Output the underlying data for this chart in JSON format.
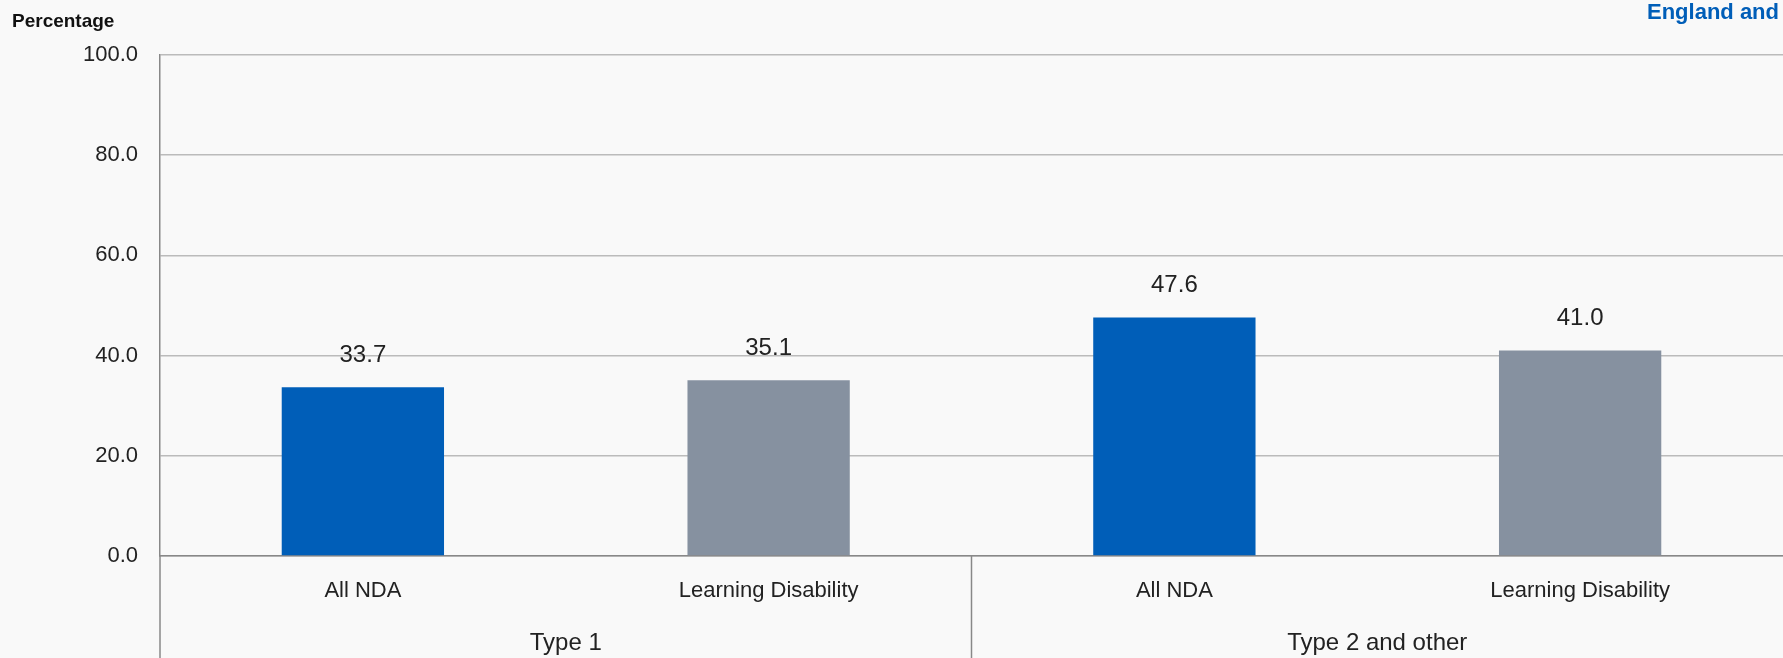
{
  "chart_data": {
    "type": "bar",
    "ylabel": "Percentage",
    "categories": [
      "All NDA",
      "Learning Disability",
      "All NDA",
      "Learning Disability"
    ],
    "values": [
      33.7,
      35.1,
      47.6,
      41.0
    ],
    "value_labels": [
      "33.7",
      "35.1",
      "47.6",
      "41.0"
    ],
    "colors": [
      "#005eb8",
      "#8691a0",
      "#005eb8",
      "#8691a0"
    ],
    "ylim": [
      0,
      100
    ],
    "yticks": [
      {
        "value": 0,
        "label": "0.0"
      },
      {
        "value": 20,
        "label": "20.0"
      },
      {
        "value": 40,
        "label": "40.0"
      },
      {
        "value": 60,
        "label": "60.0"
      },
      {
        "value": 80,
        "label": "80.0"
      },
      {
        "value": 100,
        "label": "100.0"
      }
    ],
    "grid": "y",
    "legend": false,
    "annotations": [
      "England and",
      "Type 1",
      "Type 2 and other"
    ]
  }
}
